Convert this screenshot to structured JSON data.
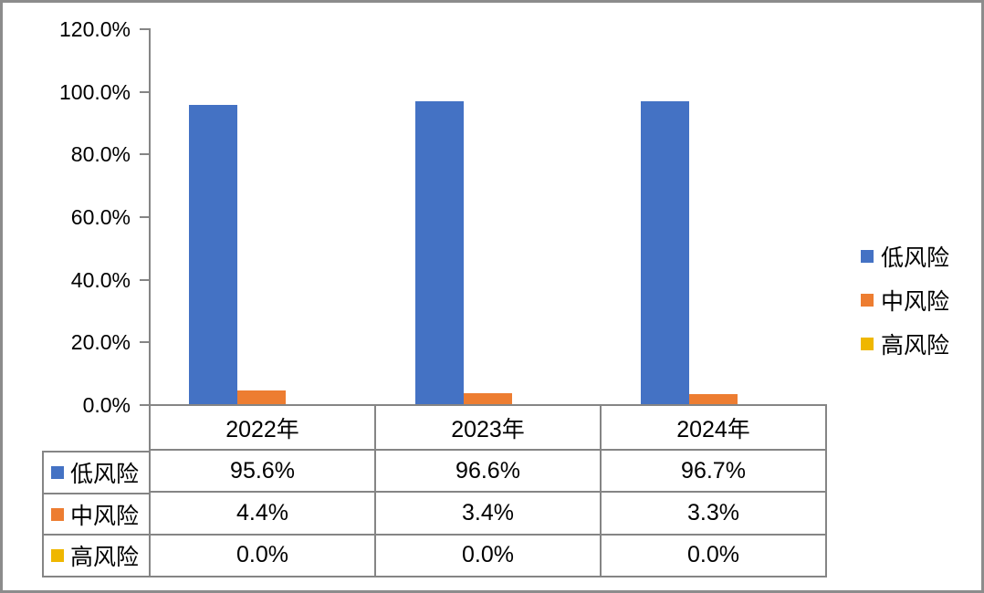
{
  "chart_data": {
    "type": "bar",
    "title": "",
    "xlabel": "",
    "ylabel": "",
    "categories": [
      "2022年",
      "2023年",
      "2024年"
    ],
    "series": [
      {
        "key": "low-risk",
        "name": "低风险",
        "color": "#4472C4",
        "values": [
          95.6,
          96.6,
          96.7
        ],
        "labels": [
          "95.6%",
          "96.6%",
          "96.7%"
        ]
      },
      {
        "key": "medium-risk",
        "name": "中风险",
        "color": "#ED7D31",
        "values": [
          4.4,
          3.4,
          3.3
        ],
        "labels": [
          "4.4%",
          "3.4%",
          "3.3%"
        ]
      },
      {
        "key": "high-risk",
        "name": "高风险",
        "color": "#EFB700",
        "values": [
          0.0,
          0.0,
          0.0
        ],
        "labels": [
          "0.0%",
          "0.0%",
          "0.0%"
        ]
      }
    ],
    "ylim": [
      0,
      120
    ],
    "yticks": [
      "0.0%",
      "20.0%",
      "40.0%",
      "60.0%",
      "80.0%",
      "100.0%",
      "120.0%"
    ],
    "grid": false,
    "legend_position": "right",
    "data_table_shown": true
  },
  "colors": {
    "axis_line": "#858585",
    "table_border": "#858585",
    "outer_border": "#8c8c8c",
    "text": "#000000",
    "background": "#ffffff"
  }
}
